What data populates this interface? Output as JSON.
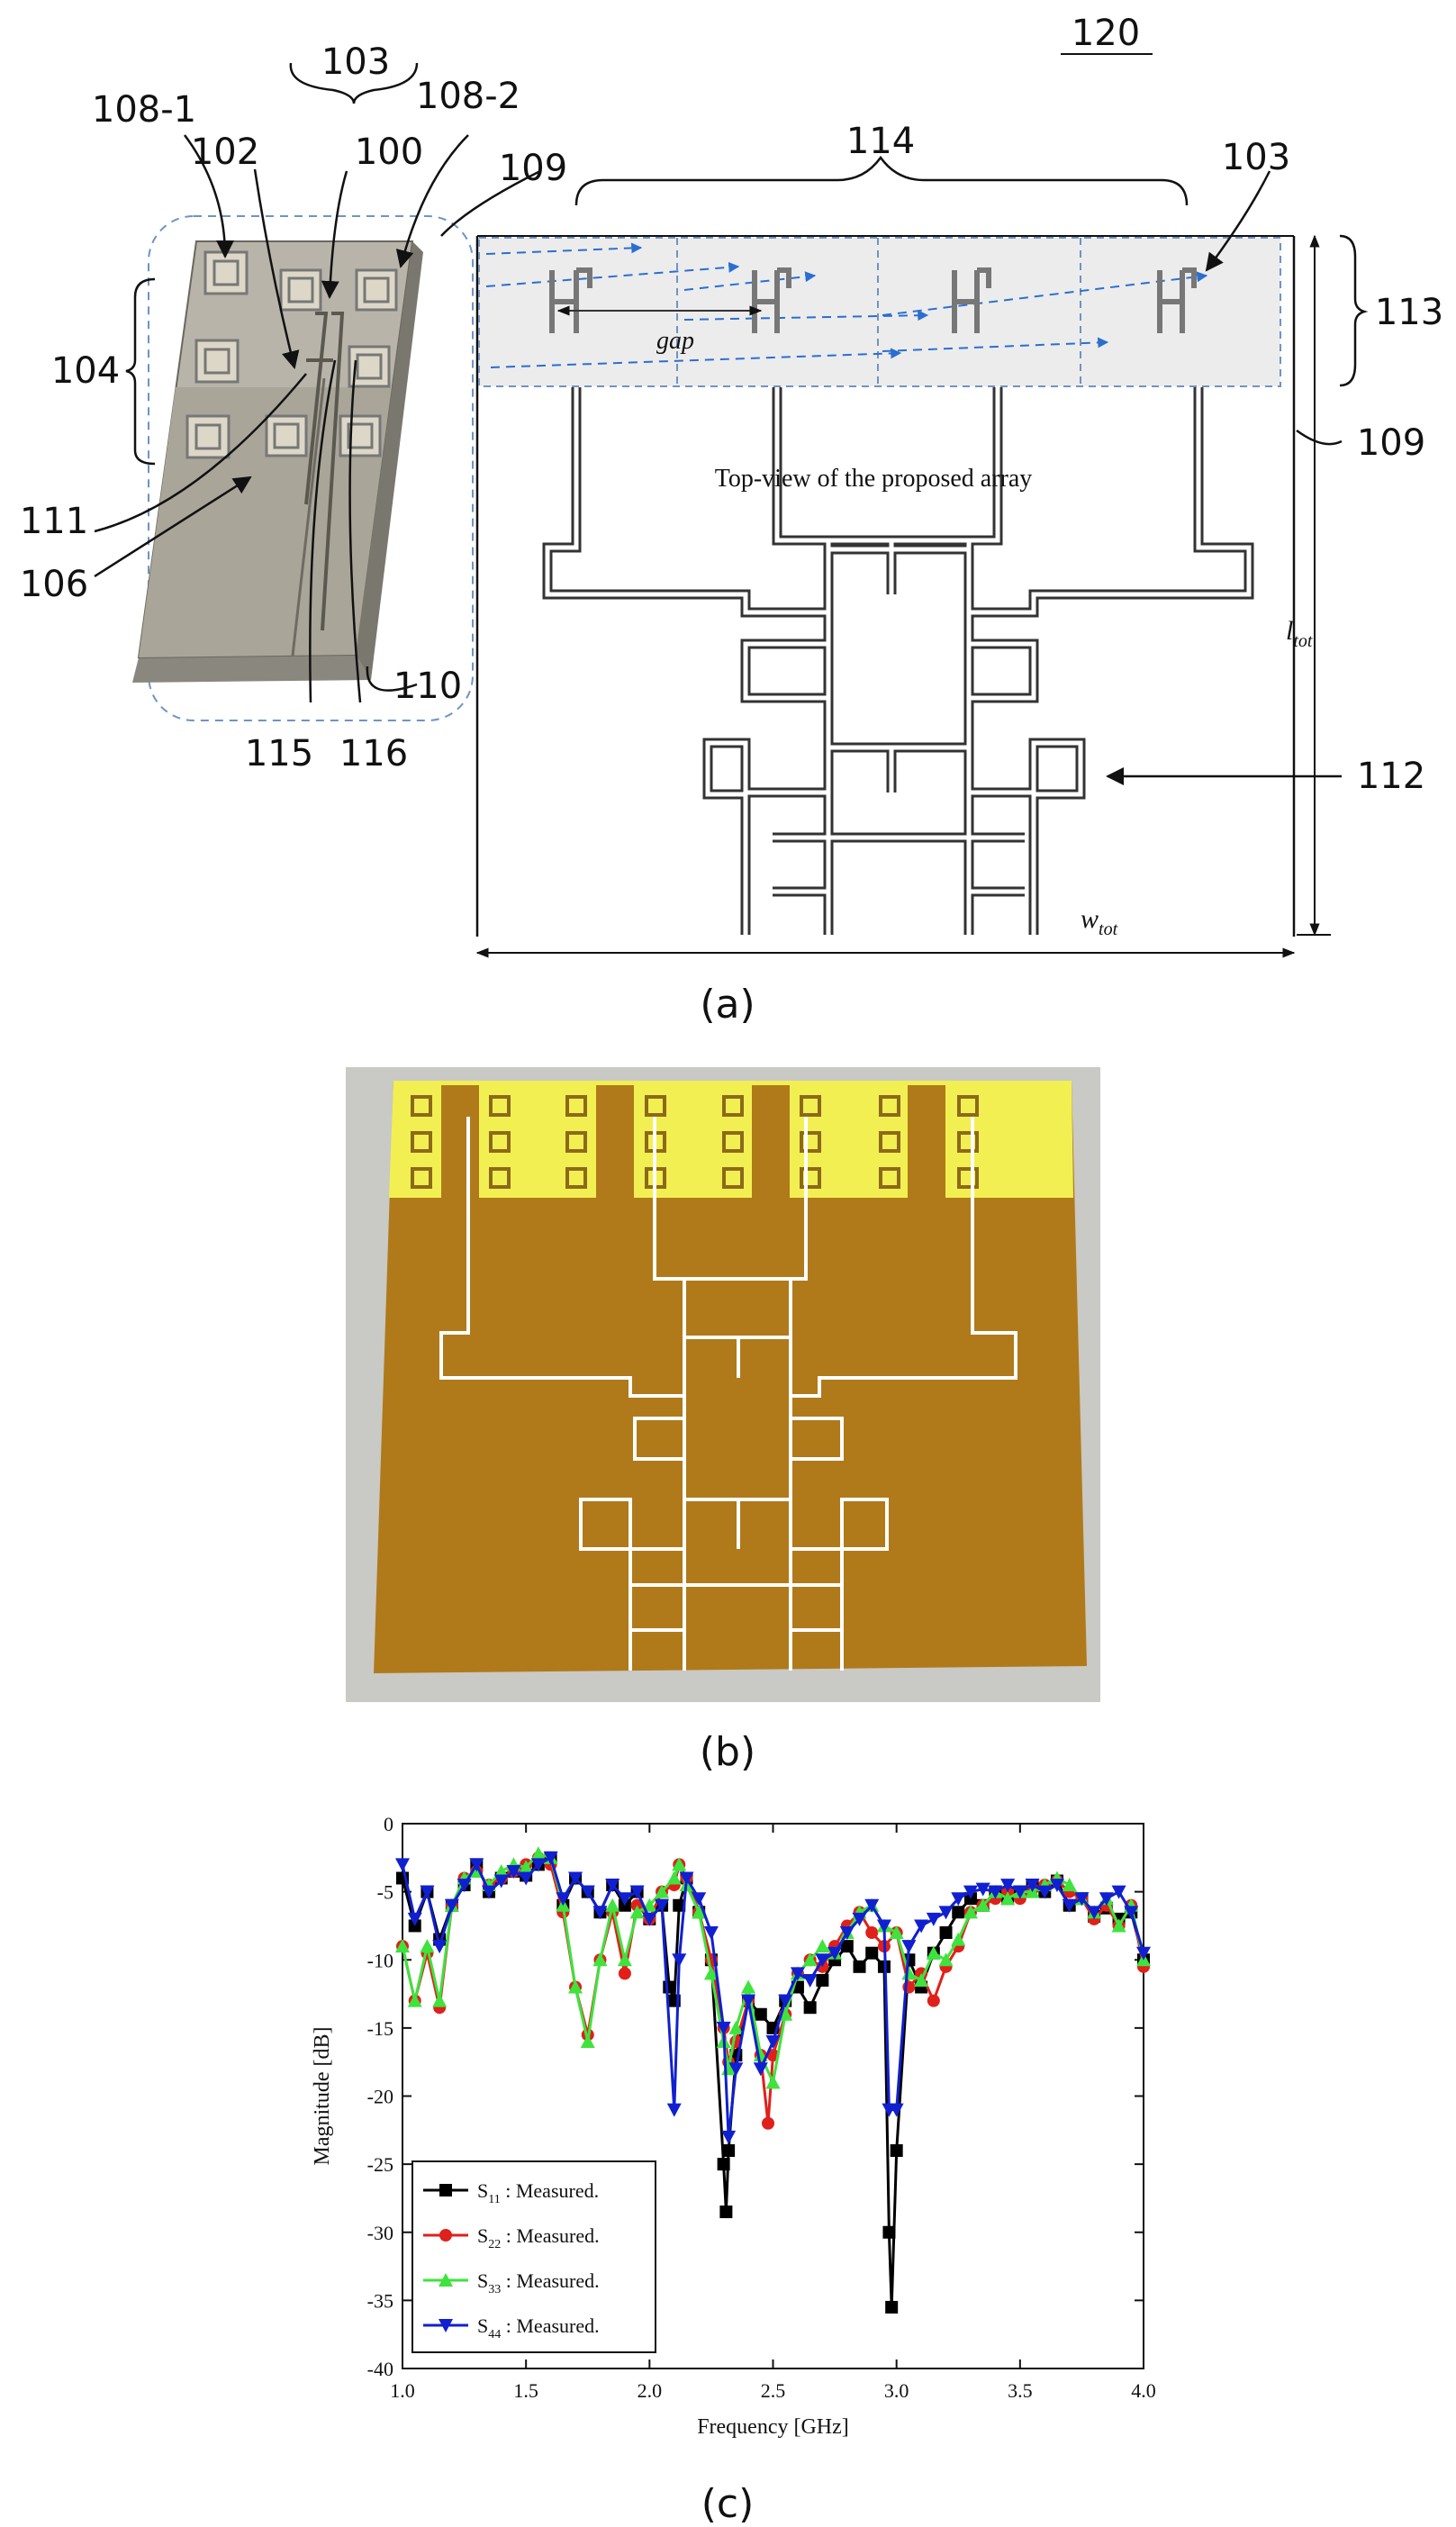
{
  "figure_number": "120",
  "panel_a": {
    "caption": "(a)",
    "refs": {
      "r103_top": "103",
      "r108_1": "108-1",
      "r108_2": "108-2",
      "r102": "102",
      "r100": "100",
      "r109_top": "109",
      "r104": "104",
      "r111": "111",
      "r106": "106",
      "r110": "110",
      "r115": "115",
      "r116": "116",
      "r114": "114",
      "r103_right": "103",
      "r113": "113",
      "r109_right": "109",
      "r112": "112"
    },
    "gap_label": "gap",
    "topview_label": "Top-view of the proposed array",
    "ltot_label": "l",
    "ltot_sub": "tot",
    "wtot_label": "w",
    "wtot_sub": "tot"
  },
  "panel_b": {
    "caption": "(b)"
  },
  "panel_c": {
    "caption": "(c)"
  },
  "colors": {
    "fr4": "#b07a1a",
    "pad": "#f2ef52",
    "trace": "#ffffff",
    "s11": "#000000",
    "s22": "#e0201a",
    "s33": "#3ee33e",
    "s44": "#1020d0"
  },
  "chart_data": {
    "type": "line",
    "xlabel": "Frequency [GHz]",
    "ylabel": "Magnitude [dB]",
    "xlim": [
      1.0,
      4.0
    ],
    "ylim": [
      -40,
      0
    ],
    "xticks": [
      "1.0",
      "1.5",
      "2.0",
      "2.5",
      "3.0",
      "3.5",
      "4.0"
    ],
    "yticks": [
      "0",
      "-5",
      "-10",
      "-15",
      "-20",
      "-25",
      "-30",
      "-35",
      "-40"
    ],
    "grid": false,
    "legend_position": "bottom-left",
    "series": [
      {
        "name": "S11 : Measured.",
        "legend_main": "S",
        "legend_sub": "11",
        "legend_rest": " : Measured.",
        "color": "#000000",
        "marker": "square",
        "x": [
          1.0,
          1.05,
          1.1,
          1.15,
          1.2,
          1.25,
          1.3,
          1.35,
          1.4,
          1.45,
          1.5,
          1.55,
          1.6,
          1.65,
          1.7,
          1.75,
          1.8,
          1.85,
          1.9,
          1.95,
          2.0,
          2.05,
          2.08,
          2.1,
          2.12,
          2.15,
          2.2,
          2.25,
          2.3,
          2.31,
          2.32,
          2.35,
          2.4,
          2.45,
          2.5,
          2.55,
          2.6,
          2.65,
          2.7,
          2.75,
          2.8,
          2.85,
          2.9,
          2.95,
          2.97,
          2.98,
          3.0,
          3.05,
          3.1,
          3.15,
          3.2,
          3.25,
          3.3,
          3.35,
          3.4,
          3.45,
          3.5,
          3.55,
          3.6,
          3.65,
          3.7,
          3.75,
          3.8,
          3.85,
          3.9,
          3.95,
          4.0
        ],
        "y": [
          -4,
          -7.5,
          -5,
          -8.5,
          -6,
          -4.5,
          -3,
          -5,
          -4,
          -3.5,
          -3.8,
          -3,
          -2.5,
          -6,
          -4,
          -5,
          -6.5,
          -4.5,
          -6,
          -5,
          -7,
          -6,
          -12,
          -13,
          -6,
          -4,
          -6.5,
          -10,
          -25,
          -28.5,
          -24,
          -17,
          -13,
          -14,
          -15,
          -13,
          -12,
          -13.5,
          -11.5,
          -10,
          -9,
          -10.5,
          -9.5,
          -10.5,
          -30,
          -35.5,
          -24,
          -10,
          -12,
          -9.5,
          -8,
          -6.5,
          -5.5,
          -6,
          -5,
          -5.5,
          -5,
          -4.5,
          -5,
          -4.2,
          -6,
          -5.5,
          -6.8,
          -6.2,
          -7,
          -6.5,
          -10
        ]
      },
      {
        "name": "S22 : Measured.",
        "legend_main": "S",
        "legend_sub": "22",
        "legend_rest": " : Measured.",
        "color": "#e0201a",
        "marker": "circle",
        "x": [
          1.0,
          1.05,
          1.1,
          1.15,
          1.2,
          1.25,
          1.3,
          1.35,
          1.4,
          1.45,
          1.5,
          1.55,
          1.6,
          1.65,
          1.7,
          1.75,
          1.8,
          1.85,
          1.9,
          1.95,
          2.0,
          2.05,
          2.1,
          2.12,
          2.15,
          2.2,
          2.25,
          2.3,
          2.32,
          2.35,
          2.4,
          2.45,
          2.48,
          2.5,
          2.55,
          2.6,
          2.65,
          2.7,
          2.75,
          2.8,
          2.85,
          2.9,
          2.95,
          3.0,
          3.05,
          3.1,
          3.15,
          3.2,
          3.25,
          3.3,
          3.35,
          3.4,
          3.45,
          3.5,
          3.55,
          3.6,
          3.65,
          3.7,
          3.75,
          3.8,
          3.85,
          3.9,
          3.95,
          4.0
        ],
        "y": [
          -9,
          -13,
          -9.5,
          -13.5,
          -6,
          -4,
          -3.5,
          -4.5,
          -4,
          -3.5,
          -3,
          -2.5,
          -3,
          -6.5,
          -12,
          -15.5,
          -10,
          -6.5,
          -11,
          -6,
          -7,
          -5,
          -4.5,
          -3,
          -4,
          -6.5,
          -10,
          -15,
          -17.5,
          -16,
          -13,
          -17,
          -22,
          -17,
          -14,
          -11,
          -10,
          -10.5,
          -9,
          -7.5,
          -6.5,
          -8,
          -9,
          -8,
          -12,
          -11,
          -13,
          -10.5,
          -9,
          -6.5,
          -6,
          -5.5,
          -5,
          -5.5,
          -4.8,
          -4.5,
          -4.2,
          -5,
          -5.5,
          -7,
          -6,
          -7.5,
          -6,
          -10.5
        ]
      },
      {
        "name": "S33 : Measured.",
        "legend_main": "S",
        "legend_sub": "33",
        "legend_rest": " : Measured.",
        "color": "#3ee33e",
        "marker": "triangle-up",
        "x": [
          1.0,
          1.05,
          1.1,
          1.15,
          1.2,
          1.25,
          1.3,
          1.35,
          1.4,
          1.45,
          1.5,
          1.55,
          1.6,
          1.65,
          1.7,
          1.75,
          1.8,
          1.85,
          1.9,
          1.95,
          2.0,
          2.05,
          2.1,
          2.12,
          2.15,
          2.2,
          2.25,
          2.3,
          2.32,
          2.35,
          2.4,
          2.45,
          2.5,
          2.55,
          2.6,
          2.65,
          2.7,
          2.75,
          2.8,
          2.85,
          2.9,
          2.95,
          3.0,
          3.05,
          3.1,
          3.15,
          3.2,
          3.25,
          3.3,
          3.35,
          3.4,
          3.45,
          3.5,
          3.55,
          3.6,
          3.65,
          3.7,
          3.75,
          3.8,
          3.85,
          3.9,
          3.95,
          4.0
        ],
        "y": [
          -9,
          -13,
          -9,
          -13,
          -6,
          -4,
          -3.5,
          -4.5,
          -3.5,
          -3,
          -3.2,
          -2.2,
          -2.5,
          -6,
          -12,
          -16,
          -10,
          -6,
          -10,
          -6.5,
          -6,
          -5,
          -4,
          -3,
          -4.5,
          -6.5,
          -11,
          -16,
          -18,
          -15,
          -12,
          -17,
          -19,
          -14,
          -11,
          -10,
          -9,
          -9.5,
          -8,
          -6.5,
          -6,
          -7.5,
          -8,
          -11,
          -11.5,
          -9.5,
          -10,
          -8.5,
          -6.5,
          -6,
          -5,
          -5.5,
          -5,
          -5,
          -4.5,
          -4,
          -4.5,
          -5.5,
          -6.5,
          -5.5,
          -7.5,
          -6,
          -10
        ]
      },
      {
        "name": "S44 : Measured.",
        "legend_main": "S",
        "legend_sub": "44",
        "legend_rest": " : Measured.",
        "color": "#1020d0",
        "marker": "triangle-down",
        "x": [
          1.0,
          1.05,
          1.1,
          1.15,
          1.2,
          1.25,
          1.3,
          1.35,
          1.4,
          1.45,
          1.5,
          1.55,
          1.6,
          1.65,
          1.7,
          1.75,
          1.8,
          1.85,
          1.9,
          1.95,
          2.0,
          2.05,
          2.1,
          2.12,
          2.15,
          2.2,
          2.25,
          2.3,
          2.32,
          2.35,
          2.4,
          2.45,
          2.5,
          2.55,
          2.6,
          2.65,
          2.7,
          2.75,
          2.8,
          2.85,
          2.9,
          2.95,
          2.97,
          3.0,
          3.05,
          3.1,
          3.15,
          3.2,
          3.25,
          3.3,
          3.35,
          3.4,
          3.45,
          3.5,
          3.55,
          3.6,
          3.65,
          3.7,
          3.75,
          3.8,
          3.85,
          3.9,
          3.95,
          4.0
        ],
        "y": [
          -3,
          -7,
          -5,
          -9,
          -6,
          -4.5,
          -3,
          -5,
          -4.2,
          -3.5,
          -4,
          -3,
          -2.5,
          -5.5,
          -4,
          -5,
          -6.5,
          -4.5,
          -5.5,
          -5,
          -7,
          -6,
          -21,
          -10,
          -4,
          -5.5,
          -8,
          -15,
          -23,
          -18,
          -13,
          -18,
          -16,
          -13,
          -11,
          -11.5,
          -10,
          -9.5,
          -8,
          -7,
          -6,
          -7.5,
          -21,
          -21,
          -9,
          -7.5,
          -7,
          -6.5,
          -5.5,
          -5,
          -4.8,
          -5,
          -4.5,
          -5,
          -4.5,
          -5,
          -4.5,
          -6,
          -5.5,
          -6.5,
          -5.5,
          -5,
          -6.5,
          -9.5
        ]
      }
    ]
  }
}
